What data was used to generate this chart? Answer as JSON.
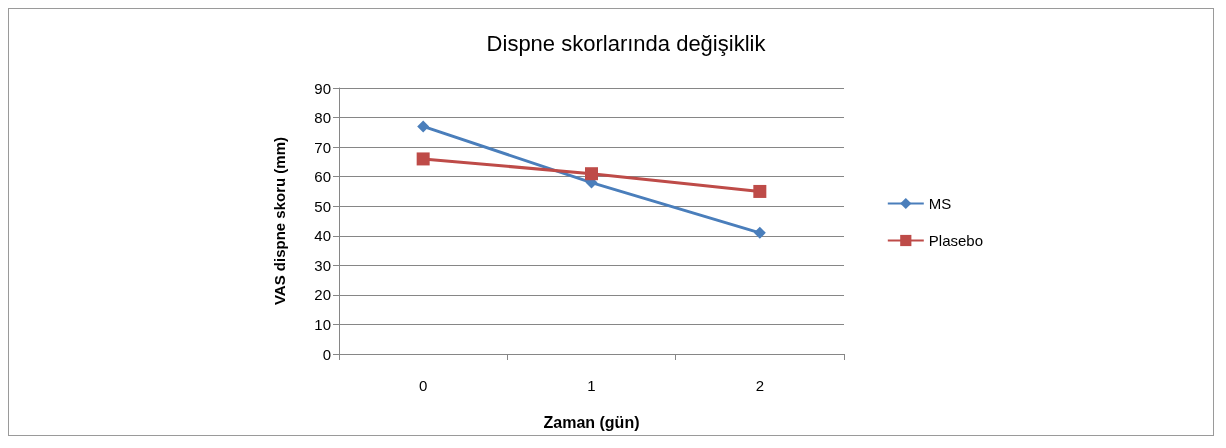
{
  "chart_data": {
    "type": "line",
    "title": "Dispne skorlarında değişiklik",
    "xlabel": "Zaman (gün)",
    "ylabel": "VAS dispne skoru (mm)",
    "categories": [
      "0",
      "1",
      "2"
    ],
    "series": [
      {
        "name": "MS",
        "color": "#4a7ebb",
        "marker": "diamond",
        "values": [
          77,
          58,
          41
        ]
      },
      {
        "name": "Plasebo",
        "color": "#be4b48",
        "marker": "square",
        "values": [
          66,
          61,
          55
        ]
      }
    ],
    "ylim": [
      0,
      90
    ],
    "yticks": [
      0,
      10,
      20,
      30,
      40,
      50,
      60,
      70,
      80,
      90
    ],
    "grid": "y",
    "legend": "right",
    "line_style": "solid"
  }
}
